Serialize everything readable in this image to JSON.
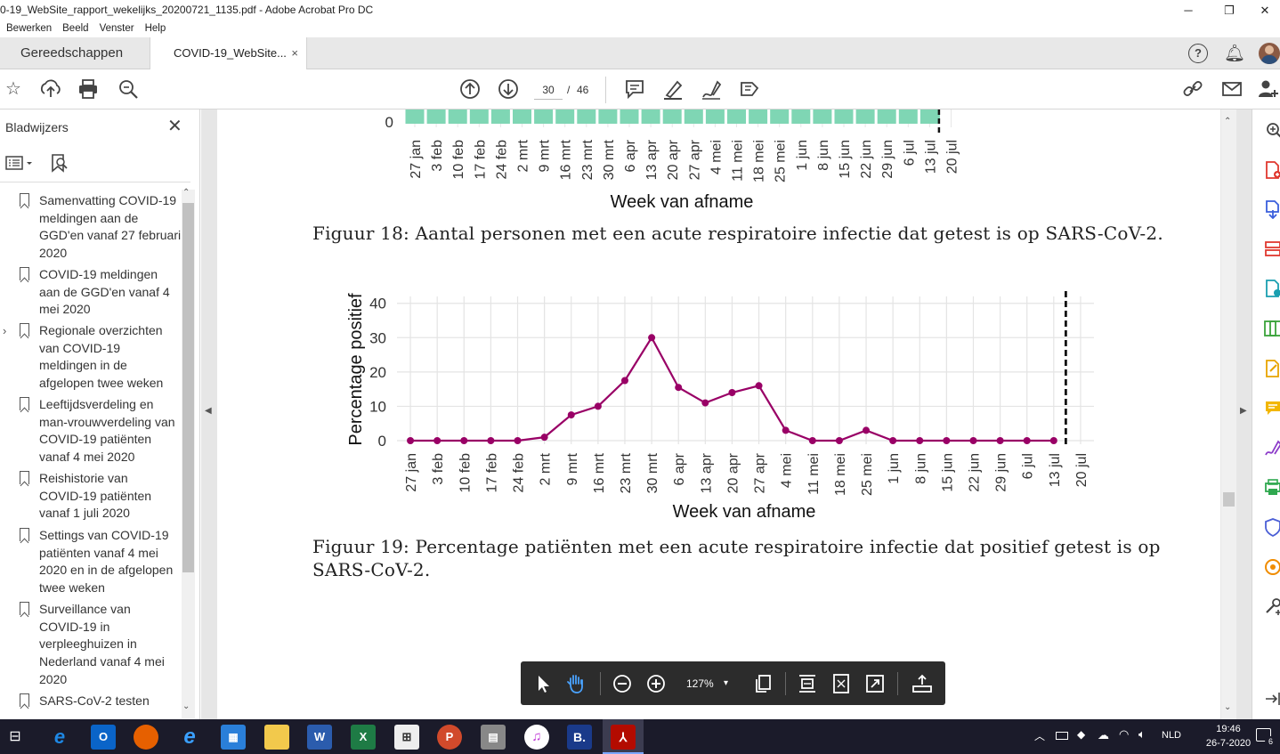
{
  "window": {
    "title": "0-19_WebSite_rapport_wekelijks_20200721_1135.pdf - Adobe Acrobat Pro DC",
    "minimize": "─",
    "restore": "❐",
    "close": "✕"
  },
  "menu": [
    "Bewerken",
    "Beeld",
    "Venster",
    "Help"
  ],
  "tabs": {
    "tools": "Gereedschappen",
    "document": "COVID-19_WebSite...",
    "close": "×"
  },
  "toolbar": {
    "page_current": "30",
    "page_sep": "/",
    "page_total": "46",
    "icons": [
      "star-icon",
      "upload-icon",
      "print-icon",
      "zoom-icon",
      "page-up-icon",
      "page-down-icon",
      "comment-icon",
      "highlight-icon",
      "sign-icon",
      "share-icon",
      "help-icon",
      "bell-icon",
      "avatar",
      "link-icon",
      "mail-icon",
      "add-user-icon"
    ]
  },
  "sidebar": {
    "title": "Bladwijzers",
    "close": "✕",
    "items": [
      {
        "label": "Samenvatting COVID-19 meldingen aan de GGD'en vanaf 27 februari 2020",
        "lines": [
          "Samenvatting COVID-19",
          "meldingen aan de",
          "GGD'en vanaf 27 februari",
          "2020"
        ]
      },
      {
        "label": "COVID-19 meldingen aan de GGD'en vanaf 4 mei 2020",
        "lines": [
          "COVID-19 meldingen",
          "aan de GGD'en vanaf 4",
          "mei 2020"
        ]
      },
      {
        "label": "Regionale overzichten van COVID-19 meldingen in de afgelopen twee weken",
        "lines": [
          "Regionale overzichten",
          "van COVID-19",
          "meldingen in de",
          "afgelopen twee weken"
        ],
        "expandable": true
      },
      {
        "label": "Leeftijdsverdeling en man-vrouwverdeling van COVID-19 patiënten vanaf 4 mei 2020",
        "lines": [
          "Leeftijdsverdeling en",
          "man-vrouwverdeling van",
          "COVID-19 patiënten",
          "vanaf 4 mei 2020"
        ]
      },
      {
        "label": "Reishistorie van COVID-19 patiënten vanaf 1 juli 2020",
        "lines": [
          "Reishistorie van",
          "COVID-19 patiënten",
          "vanaf 1 juli 2020"
        ]
      },
      {
        "label": "Settings van COVID-19 patiënten vanaf 4 mei 2020 en in de afgelopen twee weken",
        "lines": [
          "Settings van COVID-19",
          "patiënten vanaf 4 mei",
          "2020 en in de afgelopen",
          "twee weken"
        ]
      },
      {
        "label": "Surveillance van COVID-19 in verpleeghuizen in Nederland vanaf 4 mei 2020",
        "lines": [
          "Surveillance van",
          "COVID-19 in",
          "verpleeghuizen in",
          "Nederland vanaf 4 mei",
          "2020"
        ]
      },
      {
        "label": "SARS-CoV-2 testen",
        "lines": [
          "SARS-CoV-2 testen"
        ]
      }
    ]
  },
  "document": {
    "fig18_caption": "Figuur 18: Aantal personen met een acute respiratoire infectie dat getest is op SARS-CoV-2.",
    "fig19_caption_line1": "Figuur 19: Percentage patiënten met een acute respiratoire infectie dat positief getest is op",
    "fig19_caption_line2": "SARS-CoV-2."
  },
  "chart_data": [
    {
      "type": "bar",
      "note_visible": "partial (cropped, only bottom visible)",
      "xlabel": "Week van afname",
      "ytick_visible": "0",
      "categories": [
        "27 jan",
        "3 feb",
        "10 feb",
        "17 feb",
        "24 feb",
        "2 mrt",
        "9 mrt",
        "16 mrt",
        "23 mrt",
        "30 mrt",
        "6 apr",
        "13 apr",
        "20 apr",
        "27 apr",
        "4 mei",
        "11 mei",
        "18 mei",
        "25 mei",
        "1 jun",
        "8 jun",
        "15 jun",
        "22 jun",
        "29 jun",
        "6 jul",
        "13 jul",
        "20 jul"
      ],
      "bar_color": "#7fd6b4",
      "reference_line": "13 jul",
      "grid": true
    },
    {
      "type": "line",
      "xlabel": "Week van afname",
      "ylabel": "Percentage positief",
      "ylim": [
        0,
        42
      ],
      "yticks": [
        0,
        10,
        20,
        30,
        40
      ],
      "categories": [
        "27 jan",
        "3 feb",
        "10 feb",
        "17 feb",
        "24 feb",
        "2 mrt",
        "9 mrt",
        "16 mrt",
        "23 mrt",
        "30 mrt",
        "6 apr",
        "13 apr",
        "20 apr",
        "27 apr",
        "4 mei",
        "11 mei",
        "18 mei",
        "25 mei",
        "1 jun",
        "8 jun",
        "15 jun",
        "22 jun",
        "29 jun",
        "6 jul",
        "13 jul",
        "20 jul"
      ],
      "series": [
        {
          "values": [
            0,
            0,
            0,
            0,
            0,
            1,
            7.5,
            10,
            17.5,
            30,
            15.5,
            11,
            14,
            16,
            3,
            0,
            0,
            3,
            0,
            0,
            0,
            0,
            0,
            0,
            0,
            null
          ],
          "color": "#990066"
        }
      ],
      "reference_line": "20 jul",
      "grid": true
    }
  ],
  "floating_toolbar": {
    "zoom": "127%",
    "icons": [
      "select-cursor-icon",
      "hand-tool-icon",
      "zoom-out-icon",
      "zoom-in-icon",
      "page-view-icon",
      "fit-width-icon",
      "fit-page-icon",
      "fullscreen-icon",
      "read-mode-icon"
    ]
  },
  "taskbar": {
    "time": "19:46",
    "date": "26-7-2020",
    "language": "NLD",
    "notification_count": "6"
  }
}
